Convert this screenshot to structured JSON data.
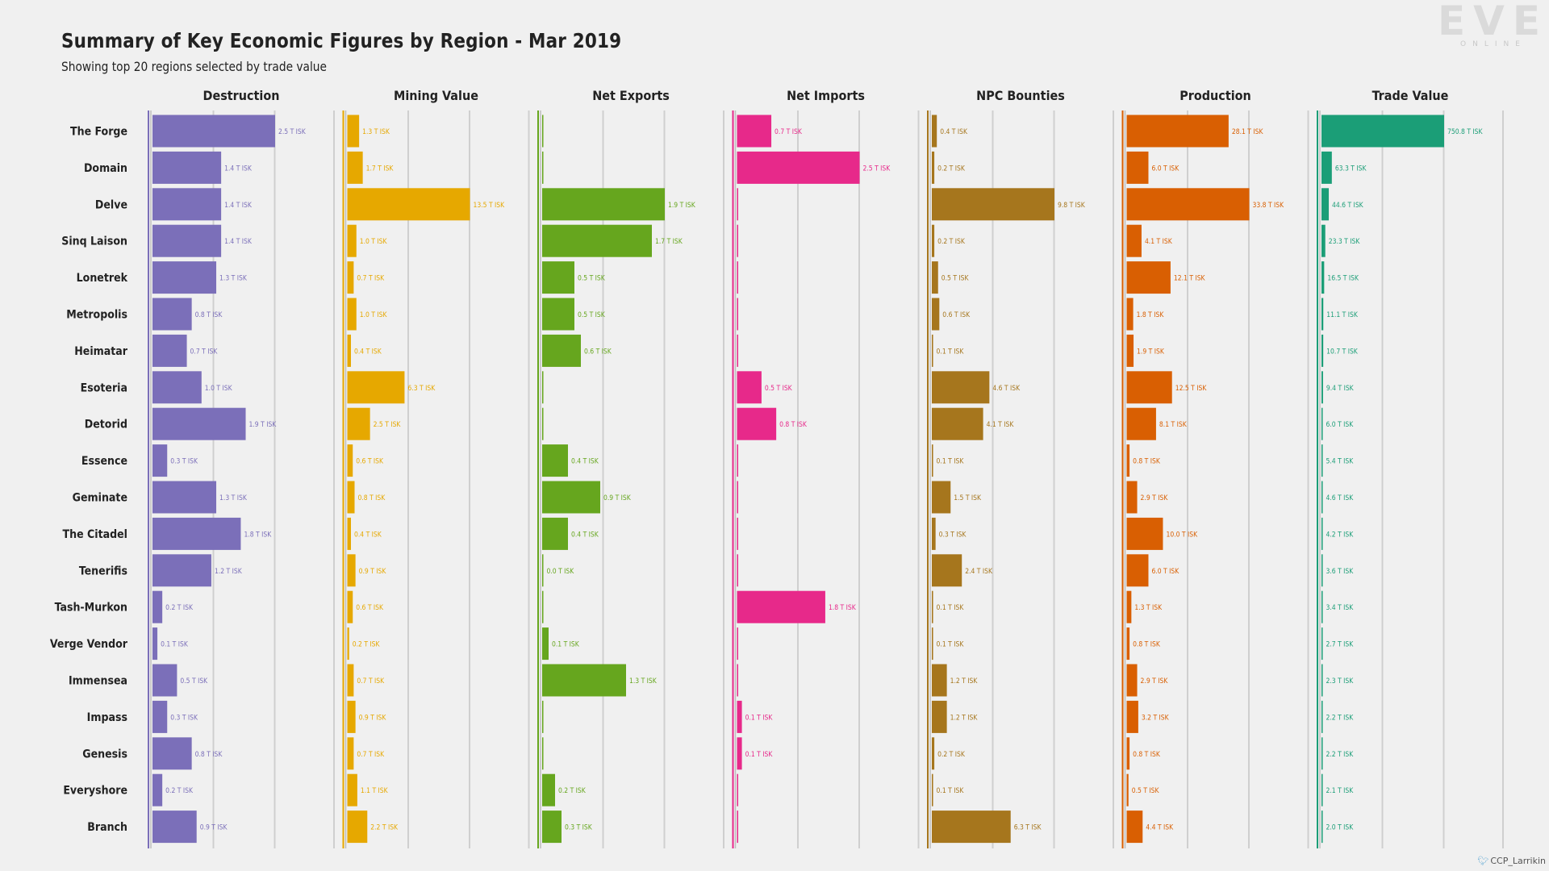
{
  "title": "Summary of Key Economic Figures by Region - Mar 2019",
  "subtitle": "Showing top 20 regions selected by trade value",
  "logo": {
    "main": "EVE",
    "sub": "ONLINE"
  },
  "credit": {
    "icon": "twitter-icon",
    "handle": "CCP_Larrikin"
  },
  "chart_data": {
    "type": "bar",
    "orientation": "horizontal",
    "title": "Summary of Key Economic Figures by Region - Mar 2019",
    "subtitle": "Showing top 20 regions selected by trade value",
    "unit": "T ISK",
    "categories": [
      "The Forge",
      "Domain",
      "Delve",
      "Sinq Laison",
      "Lonetrek",
      "Metropolis",
      "Heimatar",
      "Esoteria",
      "Detorid",
      "Essence",
      "Geminate",
      "The Citadel",
      "Tenerifis",
      "Tash-Murkon",
      "Verge Vendor",
      "Immensea",
      "Impass",
      "Genesis",
      "Everyshore",
      "Branch"
    ],
    "series": [
      {
        "name": "Destruction",
        "color": "#7b6fb9",
        "values": [
          2.5,
          1.4,
          1.4,
          1.4,
          1.3,
          0.8,
          0.7,
          1.0,
          1.9,
          0.3,
          1.3,
          1.8,
          1.2,
          0.2,
          0.1,
          0.5,
          0.3,
          0.8,
          0.2,
          0.9
        ],
        "labels": [
          "2.5 T ISK",
          "1.4 T ISK",
          "1.4 T ISK",
          "1.4 T ISK",
          "1.3 T ISK",
          "0.8 T ISK",
          "0.7 T ISK",
          "1.0 T ISK",
          "1.9 T ISK",
          "0.3 T ISK",
          "1.3 T ISK",
          "1.8 T ISK",
          "1.2 T ISK",
          "0.2 T ISK",
          "0.1 T ISK",
          "0.5 T ISK",
          "0.3 T ISK",
          "0.8 T ISK",
          "0.2 T ISK",
          "0.9 T ISK"
        ]
      },
      {
        "name": "Mining Value",
        "color": "#e6a800",
        "values": [
          1.3,
          1.7,
          13.5,
          1.0,
          0.7,
          1.0,
          0.4,
          6.3,
          2.5,
          0.6,
          0.8,
          0.4,
          0.9,
          0.6,
          0.2,
          0.7,
          0.9,
          0.7,
          1.1,
          2.2
        ],
        "labels": [
          "1.3 T ISK",
          "1.7 T ISK",
          "13.5 T ISK",
          "1.0 T ISK",
          "0.7 T ISK",
          "1.0 T ISK",
          "0.4 T ISK",
          "6.3 T ISK",
          "2.5 T ISK",
          "0.6 T ISK",
          "0.8 T ISK",
          "0.4 T ISK",
          "0.9 T ISK",
          "0.6 T ISK",
          "0.2 T ISK",
          "0.7 T ISK",
          "0.9 T ISK",
          "0.7 T ISK",
          "1.1 T ISK",
          "2.2 T ISK"
        ]
      },
      {
        "name": "Net Exports",
        "color": "#66a61e",
        "values": [
          0.0,
          0.0,
          1.9,
          1.7,
          0.5,
          0.5,
          0.6,
          0.0,
          0.0,
          0.4,
          0.9,
          0.4,
          0.0,
          0.0,
          0.1,
          1.3,
          0.0,
          0.0,
          0.2,
          0.3
        ],
        "labels": [
          "",
          "",
          "1.9 T ISK",
          "1.7 T ISK",
          "0.5 T ISK",
          "0.5 T ISK",
          "0.6 T ISK",
          "",
          "",
          "0.4 T ISK",
          "0.9 T ISK",
          "0.4 T ISK",
          "0.0 T ISK",
          "",
          "0.1 T ISK",
          "1.3 T ISK",
          "",
          "",
          "0.2 T ISK",
          "0.3 T ISK"
        ]
      },
      {
        "name": "Net Imports",
        "color": "#e7298a",
        "values": [
          0.7,
          2.5,
          0.0,
          0.0,
          0.0,
          0.0,
          0.0,
          0.5,
          0.8,
          0.0,
          0.0,
          0.0,
          0.0,
          1.8,
          0.0,
          0.0,
          0.1,
          0.1,
          0.0,
          0.0
        ],
        "labels": [
          "0.7 T ISK",
          "2.5 T ISK",
          "",
          "",
          "",
          "",
          "",
          "0.5 T ISK",
          "0.8 T ISK",
          "",
          "",
          "",
          "",
          "1.8 T ISK",
          "",
          "",
          "0.1 T ISK",
          "0.1 T ISK",
          "",
          ""
        ]
      },
      {
        "name": "NPC Bounties",
        "color": "#a6761d",
        "values": [
          0.4,
          0.2,
          9.8,
          0.2,
          0.5,
          0.6,
          0.1,
          4.6,
          4.1,
          0.1,
          1.5,
          0.3,
          2.4,
          0.1,
          0.1,
          1.2,
          1.2,
          0.2,
          0.1,
          6.3
        ],
        "labels": [
          "0.4 T ISK",
          "0.2 T ISK",
          "9.8 T ISK",
          "0.2 T ISK",
          "0.5 T ISK",
          "0.6 T ISK",
          "0.1 T ISK",
          "4.6 T ISK",
          "4.1 T ISK",
          "0.1 T ISK",
          "1.5 T ISK",
          "0.3 T ISK",
          "2.4 T ISK",
          "0.1 T ISK",
          "0.1 T ISK",
          "1.2 T ISK",
          "1.2 T ISK",
          "0.2 T ISK",
          "0.1 T ISK",
          "6.3 T ISK"
        ]
      },
      {
        "name": "Production",
        "color": "#d95f02",
        "values": [
          28.1,
          6.0,
          33.8,
          4.1,
          12.1,
          1.8,
          1.9,
          12.5,
          8.1,
          0.8,
          2.9,
          10.0,
          6.0,
          1.3,
          0.8,
          2.9,
          3.2,
          0.8,
          0.5,
          4.4
        ],
        "labels": [
          "28.1 T ISK",
          "6.0 T ISK",
          "33.8 T ISK",
          "4.1 T ISK",
          "12.1 T ISK",
          "1.8 T ISK",
          "1.9 T ISK",
          "12.5 T ISK",
          "8.1 T ISK",
          "0.8 T ISK",
          "2.9 T ISK",
          "10.0 T ISK",
          "6.0 T ISK",
          "1.3 T ISK",
          "0.8 T ISK",
          "2.9 T ISK",
          "3.2 T ISK",
          "0.8 T ISK",
          "0.5 T ISK",
          "4.4 T ISK"
        ]
      },
      {
        "name": "Trade Value",
        "color": "#1b9e77",
        "values": [
          750.8,
          63.3,
          44.6,
          23.3,
          16.5,
          11.1,
          10.7,
          9.4,
          6.0,
          5.4,
          4.6,
          4.2,
          3.6,
          3.4,
          2.7,
          2.3,
          2.2,
          2.2,
          2.1,
          2.0
        ],
        "labels": [
          "750.8 T ISK",
          "63.3 T ISK",
          "44.6 T ISK",
          "23.3 T ISK",
          "16.5 T ISK",
          "11.1 T ISK",
          "10.7 T ISK",
          "9.4 T ISK",
          "6.0 T ISK",
          "5.4 T ISK",
          "4.6 T ISK",
          "4.2 T ISK",
          "3.6 T ISK",
          "3.4 T ISK",
          "2.7 T ISK",
          "2.3 T ISK",
          "2.2 T ISK",
          "2.2 T ISK",
          "2.1 T ISK",
          "2.0 T ISK"
        ]
      }
    ],
    "grid": true,
    "legend": "none"
  }
}
